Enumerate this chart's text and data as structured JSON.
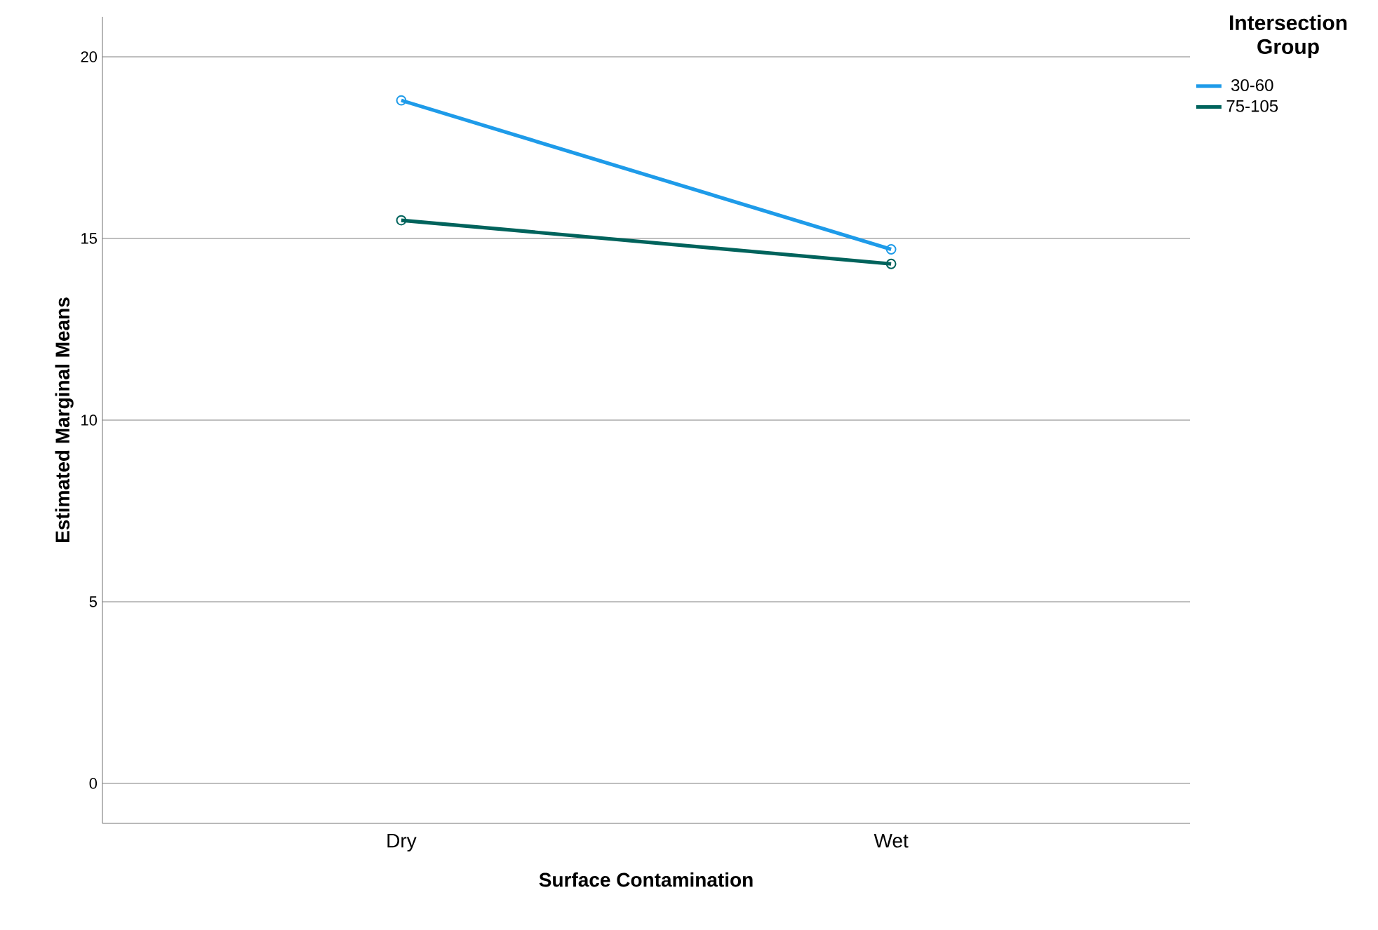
{
  "chart_data": {
    "type": "line",
    "xlabel": "Surface Contamination",
    "ylabel": "Estimated Marginal Means",
    "legend_title": "Intersection Group",
    "categories": [
      "Dry",
      "Wet"
    ],
    "series": [
      {
        "name": "30-60",
        "color": "#1e9be9",
        "values": [
          18.8,
          14.7
        ]
      },
      {
        "name": "75-105",
        "color": "#00635c",
        "values": [
          15.5,
          14.3
        ]
      }
    ],
    "ylim": [
      -1.1,
      21.1
    ],
    "yticks": [
      0,
      5,
      10,
      15,
      20
    ],
    "grid": "y",
    "legend": "top right",
    "marker": "circle",
    "line_style": "solid"
  }
}
